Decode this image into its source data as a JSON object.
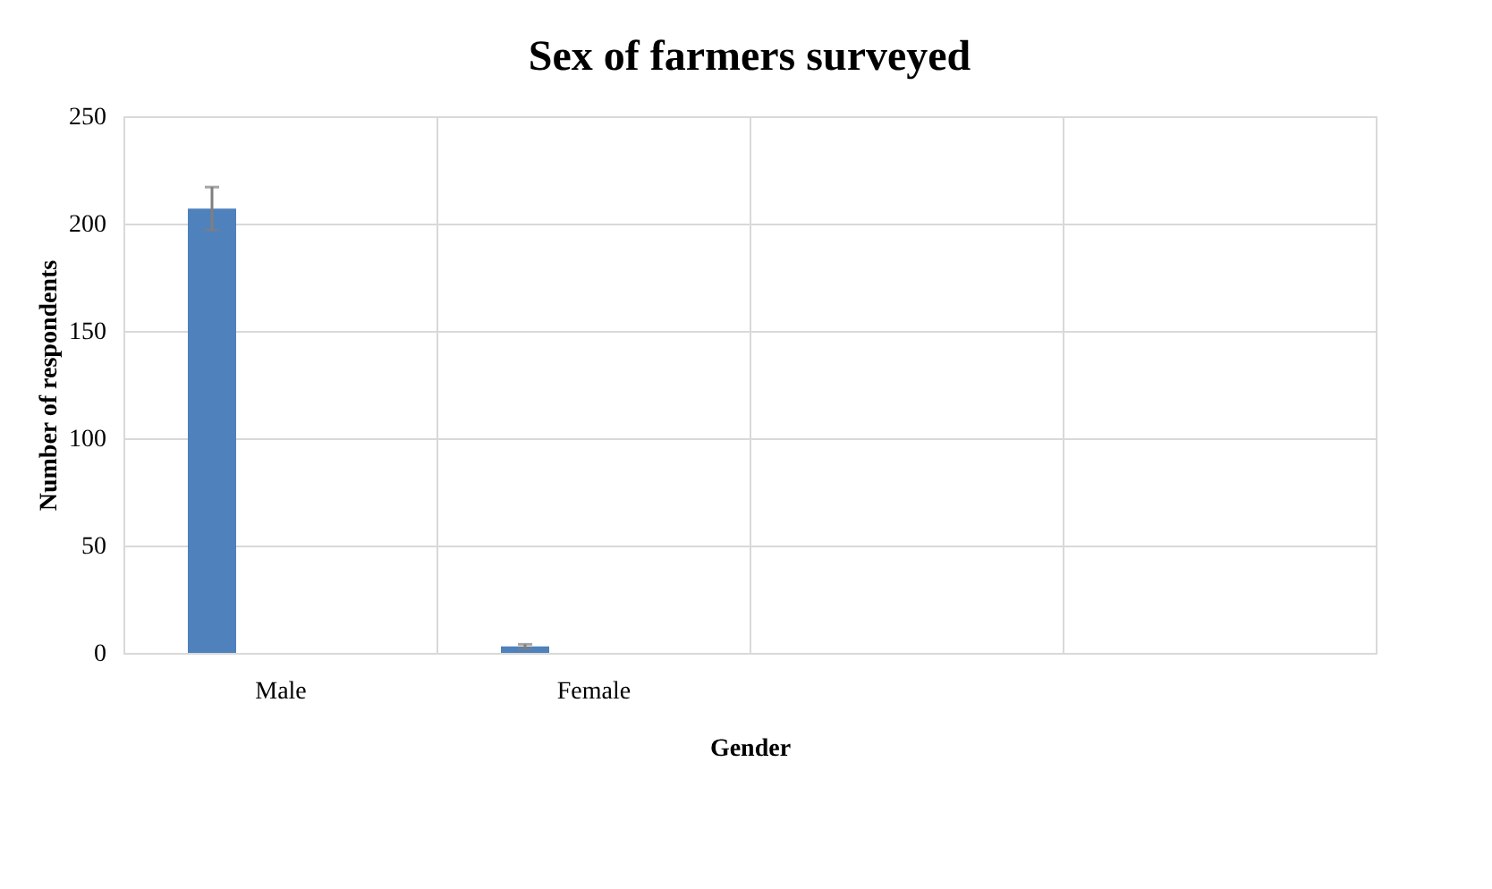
{
  "chart_data": {
    "type": "bar",
    "title": "Sex of farmers surveyed",
    "xlabel": "Gender",
    "ylabel": "Number of respondents",
    "categories": [
      "Male",
      "Female",
      null,
      null
    ],
    "series": [
      {
        "color": "#4f81bd",
        "values": [
          207,
          3,
          null,
          null
        ],
        "errors": [
          10,
          1,
          null,
          null
        ]
      }
    ],
    "ylim": [
      0,
      250
    ],
    "yticks": [
      0,
      50,
      100,
      150,
      200,
      250
    ],
    "grid": true
  }
}
